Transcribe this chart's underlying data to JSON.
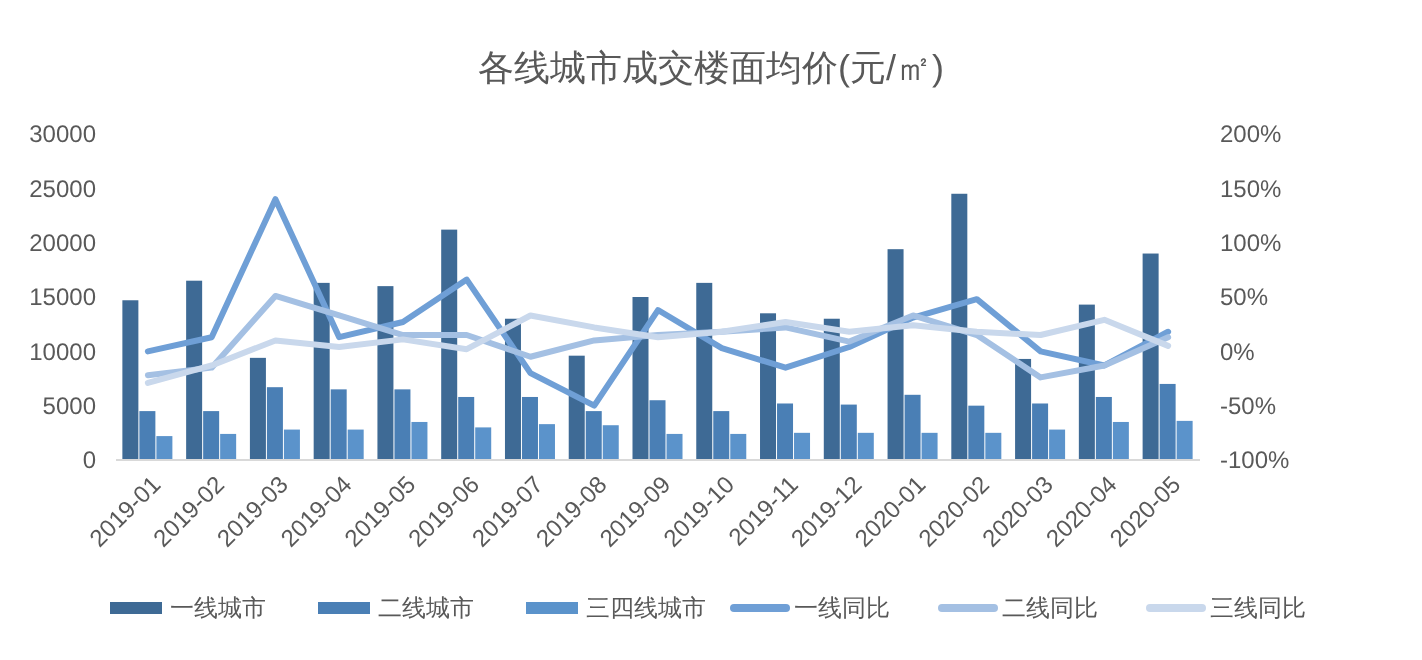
{
  "chart_data": {
    "type": "bar",
    "title": "各线城市成交楼面均价(元/㎡)",
    "categories": [
      "2019-01",
      "2019-02",
      "2019-03",
      "2019-04",
      "2019-05",
      "2019-06",
      "2019-07",
      "2019-08",
      "2019-09",
      "2019-10",
      "2019-11",
      "2019-12",
      "2020-01",
      "2020-02",
      "2020-03",
      "2020-04",
      "2020-05"
    ],
    "series": [
      {
        "name": "一线城市",
        "color": "#3e6a95",
        "values": [
          14700,
          16500,
          9400,
          16300,
          16000,
          21200,
          13000,
          9600,
          15000,
          16300,
          13500,
          13000,
          19400,
          24500,
          9300,
          14300,
          19000
        ]
      },
      {
        "name": "二线城市",
        "color": "#4a7fb5",
        "values": [
          4500,
          4500,
          6700,
          6500,
          6500,
          5800,
          5800,
          4500,
          5500,
          4500,
          5200,
          5100,
          6000,
          5000,
          5200,
          5800,
          7000
        ]
      },
      {
        "name": "三四线城市",
        "color": "#5b93cb",
        "values": [
          2200,
          2400,
          2800,
          2800,
          3500,
          3000,
          3300,
          3200,
          2400,
          2400,
          2500,
          2500,
          2500,
          2500,
          2800,
          3500,
          3600
        ]
      },
      {
        "name": "一线同比",
        "type": "line",
        "axis": "y2",
        "color": "#6f9fd6",
        "values": [
          0,
          13,
          140,
          13,
          27,
          66,
          -20,
          -50,
          38,
          3,
          -15,
          4,
          31,
          48,
          0,
          -13,
          18
        ]
      },
      {
        "name": "二线同比",
        "type": "line",
        "axis": "y2",
        "color": "#a4c0e3",
        "values": [
          -22,
          -15,
          51,
          33,
          15,
          15,
          -5,
          10,
          15,
          18,
          22,
          9,
          33,
          15,
          -24,
          -13,
          13
        ]
      },
      {
        "name": "三线同比",
        "type": "line",
        "axis": "y2",
        "color": "#c9d8ec",
        "values": [
          -29,
          -13,
          10,
          4,
          11,
          2,
          33,
          22,
          13,
          18,
          27,
          18,
          24,
          18,
          15,
          29,
          5
        ]
      }
    ],
    "ylim": [
      0,
      30000
    ],
    "yticks": [
      0,
      5000,
      10000,
      15000,
      20000,
      25000,
      30000
    ],
    "y2lim": [
      -100,
      200
    ],
    "y2ticks": [
      {
        "value": -100,
        "label": "-100%"
      },
      {
        "value": -50,
        "label": "-50%"
      },
      {
        "value": 0,
        "label": "0%"
      },
      {
        "value": 50,
        "label": "50%"
      },
      {
        "value": 100,
        "label": "100%"
      },
      {
        "value": 150,
        "label": "150%"
      },
      {
        "value": 200,
        "label": "200%"
      }
    ],
    "legend": "bottom",
    "grid": false,
    "marker": "none",
    "line_style": "solid"
  }
}
